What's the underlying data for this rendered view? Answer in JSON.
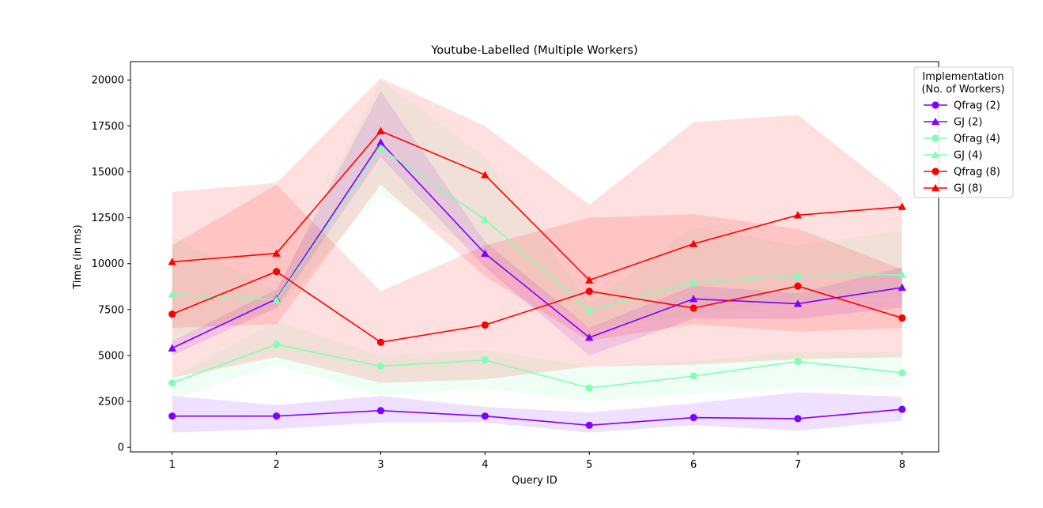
{
  "chart_data": {
    "type": "line",
    "title": "Youtube-Labelled (Multiple Workers)",
    "xlabel": "Query ID",
    "ylabel": "Time (in ms)",
    "x": [
      1,
      2,
      3,
      4,
      5,
      6,
      7,
      8
    ],
    "xlim": [
      0.6,
      8.35
    ],
    "ylim": [
      -250,
      21000
    ],
    "yticks": [
      0,
      2500,
      5000,
      7500,
      10000,
      12500,
      15000,
      17500,
      20000
    ],
    "grid": false,
    "legend": {
      "title_line1": "Implementation",
      "title_line2": "(No. of Workers)",
      "placement": "upper-right-outside"
    },
    "series": [
      {
        "name": "Qfrag (2)",
        "marker": "circle",
        "color": "#8000ff",
        "values": [
          1700,
          1700,
          2000,
          1700,
          1200,
          1620,
          1560,
          2070
        ],
        "lower": [
          800,
          1000,
          1350,
          1350,
          800,
          1200,
          900,
          1450
        ],
        "upper": [
          2800,
          2300,
          2800,
          2200,
          1900,
          2400,
          3000,
          2750
        ]
      },
      {
        "name": "GJ (2)",
        "marker": "triangle",
        "color": "#8000ff",
        "values": [
          5400,
          8080,
          16600,
          10550,
          5980,
          8080,
          7820,
          8700
        ],
        "lower": [
          5000,
          7600,
          15800,
          9800,
          5000,
          7000,
          7000,
          7600
        ],
        "upper": [
          5800,
          8600,
          19400,
          11200,
          6500,
          8800,
          8400,
          9800
        ]
      },
      {
        "name": "Qfrag (4)",
        "marker": "circle",
        "color": "#80ffb4",
        "values": [
          3500,
          5600,
          4420,
          4750,
          3230,
          3880,
          4680,
          4060
        ],
        "lower": [
          2600,
          4500,
          2800,
          3200,
          2500,
          2900,
          3300,
          3300
        ],
        "upper": [
          3800,
          6900,
          5000,
          5300,
          4400,
          4700,
          5200,
          5200
        ]
      },
      {
        "name": "GJ (4)",
        "marker": "triangle",
        "color": "#80ffb4",
        "values": [
          8330,
          8030,
          16300,
          12400,
          7450,
          9000,
          9350,
          9400
        ],
        "lower": [
          6000,
          7500,
          13800,
          10500,
          6500,
          7200,
          8000,
          8200
        ],
        "upper": [
          11500,
          8500,
          20000,
          15800,
          7800,
          12000,
          11000,
          11800
        ]
      },
      {
        "name": "Qfrag (8)",
        "marker": "circle",
        "color": "#ff0000",
        "values": [
          7250,
          9570,
          5720,
          6660,
          8500,
          7580,
          8780,
          7040
        ],
        "lower": [
          3800,
          4900,
          3500,
          3700,
          4400,
          4500,
          4800,
          4900
        ],
        "upper": [
          11000,
          14300,
          8500,
          11000,
          12500,
          12700,
          11900,
          9700
        ]
      },
      {
        "name": "GJ (8)",
        "marker": "triangle",
        "color": "#ff0000",
        "values": [
          10100,
          10560,
          17220,
          14830,
          9100,
          11080,
          12640,
          13100
        ],
        "lower": [
          6500,
          6700,
          14300,
          9300,
          5800,
          6700,
          6300,
          6500
        ],
        "upper": [
          13900,
          14400,
          20100,
          17500,
          13200,
          17700,
          18100,
          13600
        ]
      }
    ]
  }
}
